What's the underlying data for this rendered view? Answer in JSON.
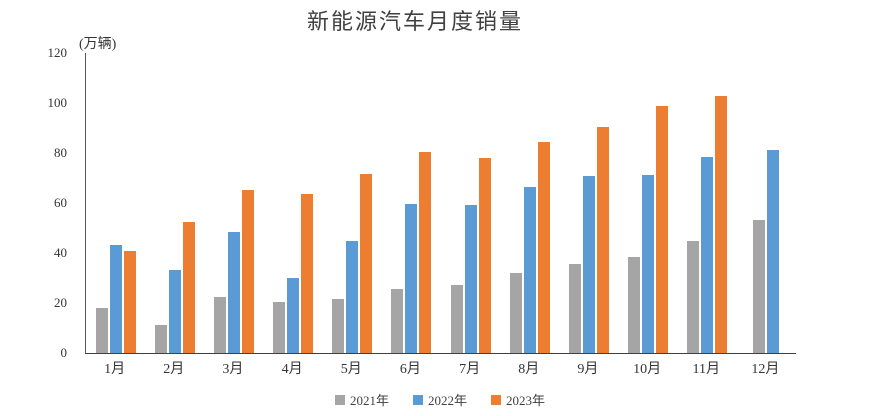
{
  "chart_data": {
    "type": "bar",
    "title": "新能源汽车月度销量",
    "unit_label": "(万辆)",
    "xlabel": "",
    "ylabel": "万辆",
    "categories": [
      "1月",
      "2月",
      "3月",
      "4月",
      "5月",
      "6月",
      "7月",
      "8月",
      "9月",
      "10月",
      "11月",
      "12月"
    ],
    "series": [
      {
        "name": "2021年",
        "color": "#A5A5A5",
        "values": [
          17.9,
          11.1,
          22.6,
          20.6,
          21.7,
          25.6,
          27.1,
          32.1,
          35.7,
          38.3,
          45.0,
          53.1
        ]
      },
      {
        "name": "2022年",
        "color": "#5B9BD5",
        "values": [
          43.1,
          33.4,
          48.4,
          29.9,
          44.7,
          59.6,
          59.3,
          66.6,
          70.8,
          71.4,
          78.6,
          81.4
        ]
      },
      {
        "name": "2023年",
        "color": "#ED7D31",
        "values": [
          40.8,
          52.5,
          65.3,
          63.6,
          71.7,
          80.6,
          78.0,
          84.6,
          90.4,
          99.0,
          103.0,
          null
        ]
      }
    ],
    "ylim": [
      0,
      120
    ],
    "y_ticks": [
      0,
      20,
      40,
      60,
      80,
      100,
      120
    ],
    "grid": false,
    "legend_position": "bottom"
  }
}
